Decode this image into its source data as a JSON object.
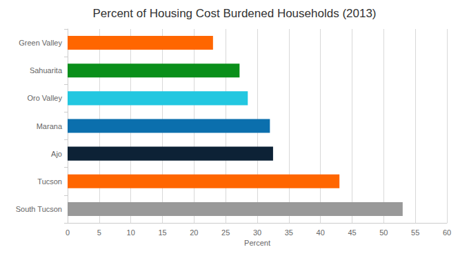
{
  "chart_data": {
    "type": "bar",
    "title": "Percent of Housing Cost Burdened Households (2013)",
    "orientation": "horizontal",
    "categories": [
      "Green Valley",
      "Sahuarita",
      "Oro Valley",
      "Marana",
      "Ajo",
      "Tucson",
      "South Tucson"
    ],
    "values": [
      23,
      27.2,
      28.5,
      32,
      32.5,
      43,
      53
    ],
    "colors": [
      "#ff6600",
      "#0a8f1a",
      "#22c7e0",
      "#0b6fad",
      "#0d2236",
      "#ff6600",
      "#999999"
    ],
    "xlabel": "Percent",
    "xlim": [
      0,
      60
    ],
    "xticks": [
      0,
      5,
      10,
      15,
      20,
      25,
      30,
      35,
      40,
      45,
      50,
      55,
      60
    ],
    "grid": true
  }
}
